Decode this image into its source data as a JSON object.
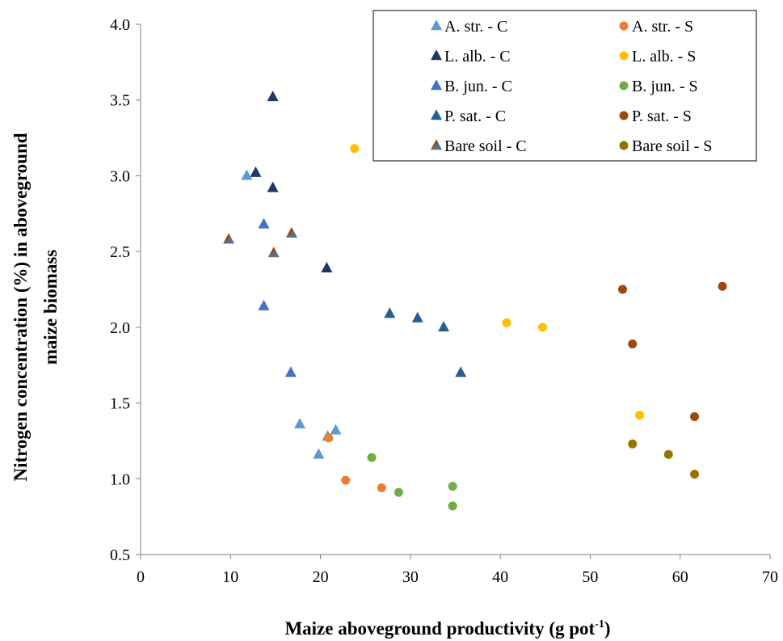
{
  "chart_data": {
    "type": "scatter",
    "xlabel": "Maize aboveground productivity (g pot",
    "xlabel_sup": "-1",
    "xlabel_tail": ")",
    "ylabel_line1": "Nitrogen  concentration (%) in aboveground",
    "ylabel_line2": "maize biomass",
    "xlim": [
      0,
      70
    ],
    "ylim": [
      0.5,
      4.0
    ],
    "xticks": [
      "0",
      "10",
      "20",
      "30",
      "40",
      "50",
      "60",
      "70"
    ],
    "yticks": [
      "0.5",
      "1.0",
      "1.5",
      "2.0",
      "2.5",
      "3.0",
      "3.5",
      "4.0"
    ],
    "grid": false,
    "legend_position": "top-right",
    "series": [
      {
        "name": "A. str. - C",
        "marker": "triangle",
        "color": "#5B9BD5",
        "points": [
          [
            11.8,
            3.0
          ],
          [
            17.7,
            1.36
          ],
          [
            19.8,
            1.16
          ],
          [
            20.8,
            1.28
          ],
          [
            21.7,
            1.32
          ]
        ]
      },
      {
        "name": "A. str. - S",
        "marker": "circle",
        "color": "#ED7D31",
        "points": [
          [
            20.9,
            1.27
          ],
          [
            22.8,
            0.99
          ],
          [
            26.8,
            0.94
          ]
        ]
      },
      {
        "name": "L. alb. - C",
        "marker": "triangle",
        "color": "#1F3864",
        "points": [
          [
            12.8,
            3.02
          ],
          [
            14.7,
            3.52
          ],
          [
            14.7,
            2.92
          ],
          [
            20.7,
            2.39
          ]
        ]
      },
      {
        "name": "L. alb. - S",
        "marker": "circle",
        "color": "#FFC000",
        "points": [
          [
            23.8,
            3.18
          ],
          [
            40.7,
            2.03
          ],
          [
            44.7,
            2.0
          ],
          [
            55.5,
            1.42
          ]
        ]
      },
      {
        "name": "B. jun. - C",
        "marker": "triangle",
        "color": "#4472C4",
        "points": [
          [
            13.7,
            2.68
          ],
          [
            13.7,
            2.14
          ],
          [
            16.7,
            1.7
          ]
        ]
      },
      {
        "name": "B. jun. - S",
        "marker": "circle",
        "color": "#70AD47",
        "points": [
          [
            25.7,
            1.14
          ],
          [
            28.7,
            0.91
          ],
          [
            34.7,
            0.95
          ],
          [
            34.7,
            0.82
          ]
        ]
      },
      {
        "name": "P. sat. - C",
        "marker": "triangle",
        "color": "#255E91",
        "points": [
          [
            27.7,
            2.09
          ],
          [
            30.8,
            2.06
          ],
          [
            33.7,
            2.0
          ],
          [
            35.6,
            1.7
          ]
        ]
      },
      {
        "name": "P. sat. - S",
        "marker": "circle",
        "color": "#9E480E",
        "points": [
          [
            53.6,
            2.25
          ],
          [
            54.7,
            1.89
          ],
          [
            61.6,
            1.41
          ],
          [
            64.7,
            2.27
          ]
        ]
      },
      {
        "name": "Bare soil - C",
        "marker": "triangle-bare",
        "color": "#9E480E",
        "fill2": "#5B6F8A",
        "points": [
          [
            9.8,
            2.58
          ],
          [
            14.8,
            2.49
          ],
          [
            16.8,
            2.62
          ]
        ]
      },
      {
        "name": "Bare soil - S",
        "marker": "circle",
        "color": "#997300",
        "points": [
          [
            54.7,
            1.23
          ],
          [
            58.7,
            1.16
          ],
          [
            61.6,
            1.03
          ]
        ]
      }
    ]
  }
}
